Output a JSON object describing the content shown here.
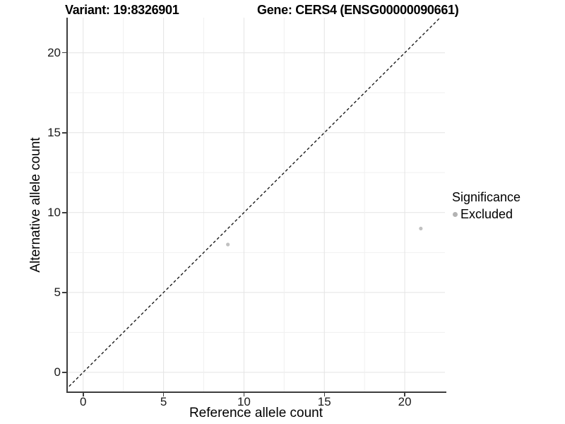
{
  "chart_data": {
    "type": "scatter",
    "title_left": "Variant: 19:8326901",
    "title_right": "Gene: CERS4 (ENSG00000090661)",
    "xlabel": "Reference allele count",
    "ylabel": "Alternative allele count",
    "xlim": [
      -1.0,
      22.5
    ],
    "ylim": [
      -1.2,
      22.2
    ],
    "x_ticks": [
      0,
      5,
      10,
      15,
      20
    ],
    "y_ticks": [
      0,
      5,
      10,
      15,
      20
    ],
    "minor_grid_step": 2.5,
    "grid": true,
    "reference_line": {
      "type": "identity",
      "equation": "y = x",
      "style": "dashed",
      "color": "#1a1a1a"
    },
    "series": [
      {
        "name": "Excluded",
        "color": "#c1c1c1",
        "marker": "circle",
        "points": [
          [
            9,
            8
          ],
          [
            21,
            9
          ]
        ]
      }
    ],
    "legend": {
      "title": "Significance",
      "position": "right",
      "items": [
        {
          "label": "Excluded",
          "color": "#b3b3b3",
          "marker": "circle"
        }
      ]
    },
    "colors": {
      "grid_major": "#e4e4e4",
      "grid_minor": "#f0f0f0",
      "axis": "#3d3d3d",
      "tick_label": "#1a1a1a",
      "background": "#ffffff"
    }
  }
}
